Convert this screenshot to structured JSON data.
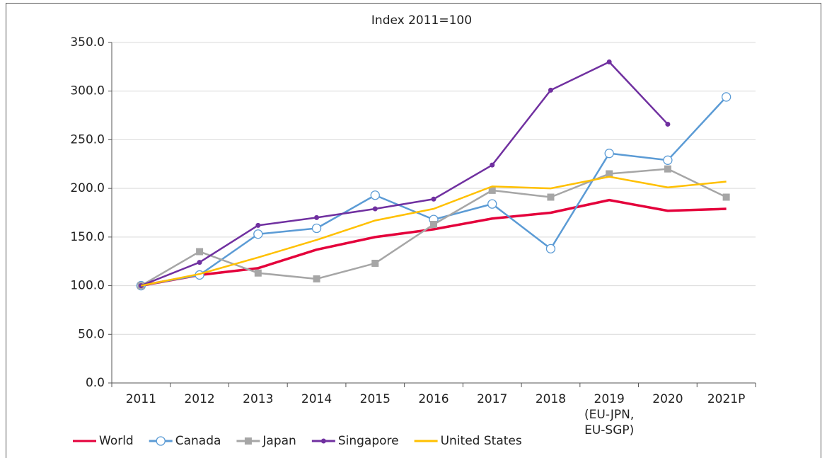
{
  "chart_data": {
    "type": "line",
    "title": "Index 2011=100",
    "categories": [
      "2011",
      "2012",
      "2013",
      "2014",
      "2015",
      "2016",
      "2017",
      "2018",
      "2019\n(EU-JPN,\nEU-SGP)",
      "2020",
      "2021P"
    ],
    "series": [
      {
        "name": "World",
        "color": "#e4003b",
        "marker": "none",
        "values": [
          100,
          111,
          118,
          137,
          150,
          158,
          169,
          175,
          188,
          177,
          179
        ]
      },
      {
        "name": "Canada",
        "color": "#5b9bd5",
        "marker": "circle-open",
        "values": [
          100,
          111,
          153,
          159,
          193,
          168,
          184,
          138,
          236,
          229,
          294
        ]
      },
      {
        "name": "Japan",
        "color": "#a6a6a6",
        "marker": "square",
        "values": [
          100,
          135,
          113,
          107,
          123,
          163,
          198,
          191,
          215,
          220,
          191
        ]
      },
      {
        "name": "Singapore",
        "color": "#7030a0",
        "marker": "dot",
        "values": [
          100,
          124,
          162,
          170,
          179,
          189,
          224,
          301,
          330,
          266,
          null
        ]
      },
      {
        "name": "United States",
        "color": "#ffc000",
        "marker": "none",
        "values": [
          100,
          112,
          129,
          147,
          167,
          179,
          202,
          200,
          212,
          201,
          207
        ]
      }
    ],
    "ylim": [
      0,
      350
    ],
    "yticks": [
      {
        "value": 0,
        "label": "0.0"
      },
      {
        "value": 50,
        "label": "50.0"
      },
      {
        "value": 100,
        "label": "100.0"
      },
      {
        "value": 150,
        "label": "150.0"
      },
      {
        "value": 200,
        "label": "200.0"
      },
      {
        "value": 250,
        "label": "250.0"
      },
      {
        "value": 300,
        "label": "300.0"
      },
      {
        "value": 350,
        "label": "350.0"
      }
    ],
    "grid": true,
    "legend": "bottom"
  }
}
